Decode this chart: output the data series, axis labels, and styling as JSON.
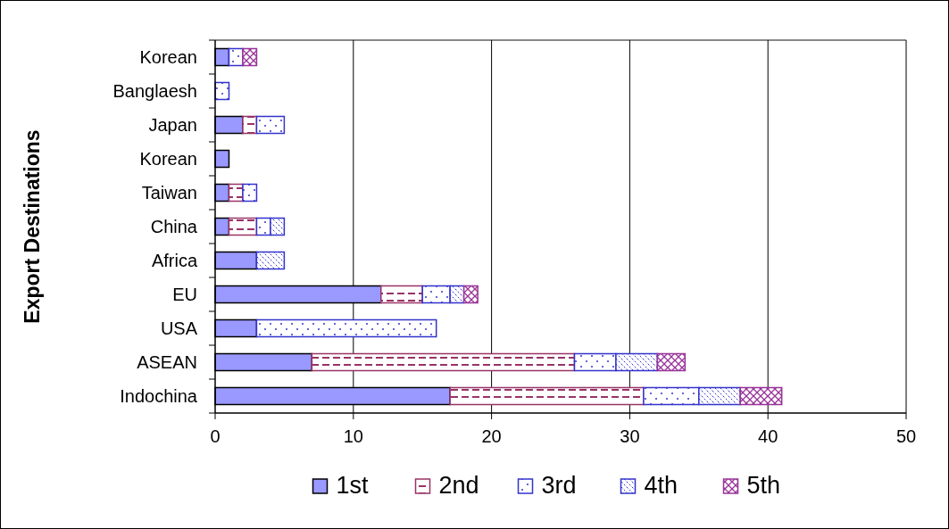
{
  "chart_data": {
    "type": "bar",
    "orientation": "horizontal",
    "stacked": true,
    "ylabel": "Export Destinations",
    "categories": [
      "Korean",
      "Banglaesh",
      "Japan",
      "Korean",
      "Taiwan",
      "China",
      "Africa",
      "EU",
      "USA",
      "ASEAN",
      "Indochina"
    ],
    "series": [
      {
        "name": "1st",
        "color": "#9999ff",
        "values": [
          1,
          0,
          2,
          1,
          1,
          1,
          3,
          12,
          3,
          7,
          17
        ]
      },
      {
        "name": "2nd",
        "color": "#993366",
        "values": [
          0,
          0,
          1,
          0,
          1,
          2,
          0,
          3,
          0,
          19,
          14
        ]
      },
      {
        "name": "3rd",
        "color": "#3333cc",
        "values": [
          1,
          1,
          2,
          0,
          1,
          1,
          0,
          2,
          13,
          3,
          4
        ]
      },
      {
        "name": "4th",
        "color": "#3333cc",
        "values": [
          0,
          0,
          0,
          0,
          0,
          1,
          2,
          1,
          0,
          3,
          3
        ]
      },
      {
        "name": "5th",
        "color": "#993399",
        "values": [
          1,
          0,
          0,
          0,
          0,
          0,
          0,
          1,
          0,
          2,
          3
        ]
      }
    ],
    "xlim": [
      0,
      50
    ],
    "xticks": [
      0,
      10,
      20,
      30,
      40,
      50
    ],
    "grid": "x",
    "legend": "bottom"
  }
}
